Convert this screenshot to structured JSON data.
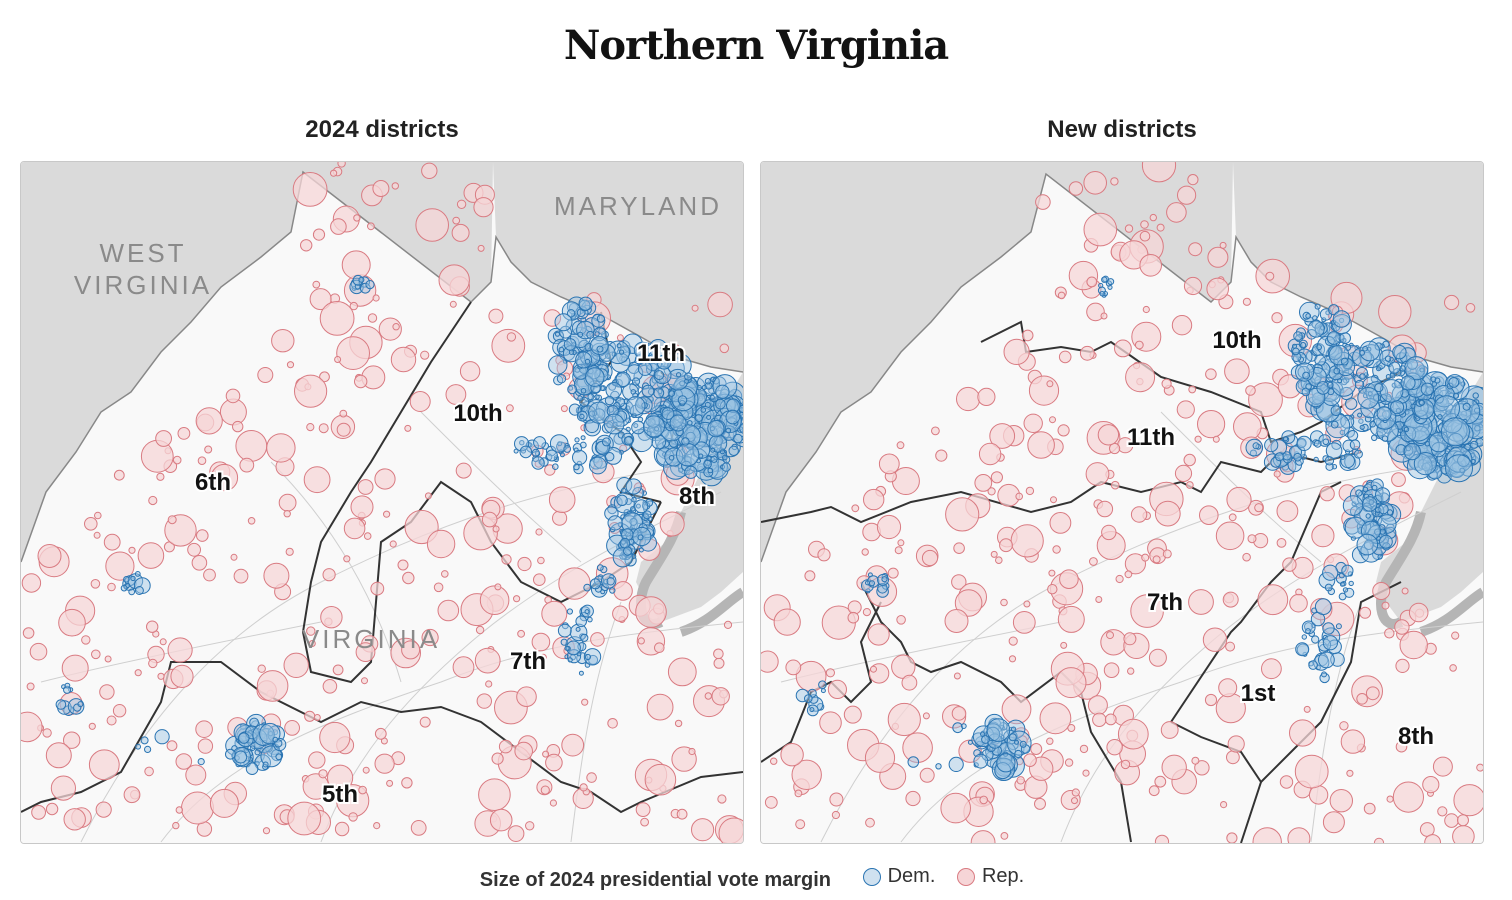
{
  "title": "Northern Virginia",
  "panels": [
    {
      "title": "2024 districts",
      "state_labels": [
        {
          "id": "west-virginia-label",
          "line1": "WEST",
          "line2": "VIRGINIA"
        },
        {
          "id": "maryland-label",
          "line1": "MARYLAND",
          "line2": ""
        },
        {
          "id": "virginia-label",
          "line1": "VIRGINIA",
          "line2": ""
        }
      ],
      "district_labels": [
        "6th",
        "10th",
        "11th",
        "8th",
        "7th",
        "5th"
      ]
    },
    {
      "title": "New districts",
      "state_labels": [],
      "district_labels": [
        "10th",
        "11th",
        "7th",
        "1st",
        "8th"
      ]
    }
  ],
  "legend": {
    "label": "Size of 2024 presidential vote margin",
    "dem": "Dem.",
    "rep": "Rep."
  },
  "colors": {
    "dem_stroke": "#2a74b2",
    "dem_fill": "#9cc3e3",
    "rep_stroke": "#d97b82",
    "rep_fill": "#f6d5d7",
    "outside_state": "#dadada",
    "state_bg": "#f9f9f9",
    "water": "#b5b5b5",
    "district_line": "#333333"
  }
}
